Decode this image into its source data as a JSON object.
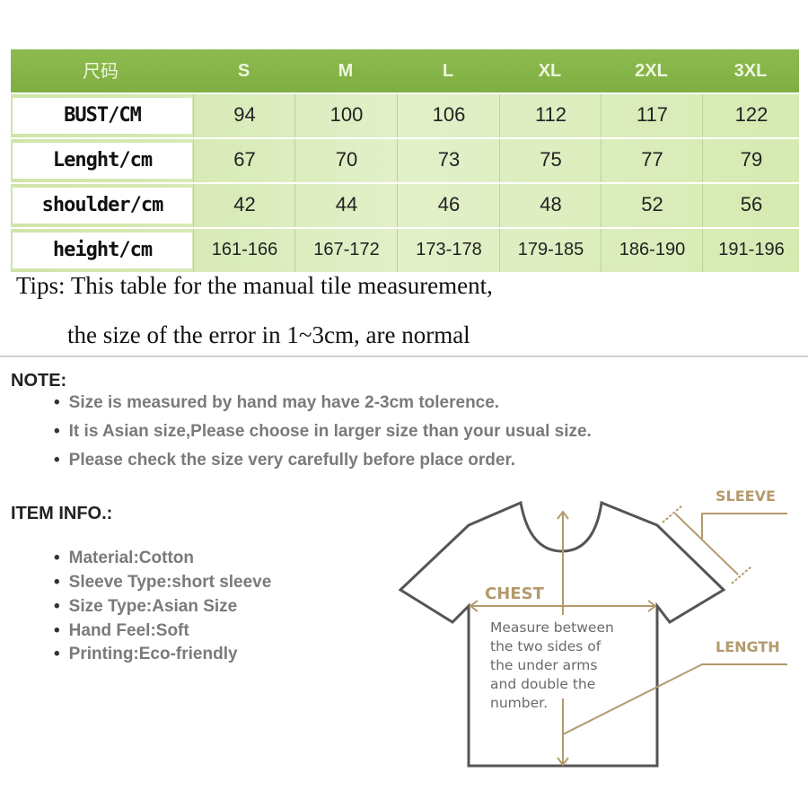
{
  "table": {
    "header": [
      "尺码",
      "S",
      "M",
      "L",
      "XL",
      "2XL",
      "3XL"
    ],
    "rows": [
      {
        "label": "BUST/CM",
        "values": [
          "94",
          "100",
          "106",
          "112",
          "117",
          "122"
        ]
      },
      {
        "label": "Lenght/cm",
        "values": [
          "67",
          "70",
          "73",
          "75",
          "77",
          "79"
        ]
      },
      {
        "label": "shoulder/cm",
        "values": [
          "42",
          "44",
          "46",
          "48",
          "52",
          "56"
        ]
      },
      {
        "label": "height/cm",
        "values": [
          "161-166",
          "167-172",
          "173-178",
          "179-185",
          "186-190",
          "191-196"
        ]
      }
    ]
  },
  "tips": {
    "line1": "Tips: This table for the manual tile measurement,",
    "line2": "the size of the error in 1~3cm, are normal"
  },
  "note": {
    "title": "NOTE:",
    "items": [
      "Size is measured by hand may have 2-3cm tolerence.",
      "It is Asian size,Please choose in larger size than your usual size.",
      "Please check the size very carefully before place order."
    ]
  },
  "item_info": {
    "title": "ITEM INFO.:",
    "items": [
      "Material:Cotton",
      "Sleeve Type:short sleeve",
      "Size Type:Asian Size",
      "Hand Feel:Soft",
      "Printing:Eco-friendly"
    ]
  },
  "diagram": {
    "sleeve": "SLEEVE",
    "chest": "CHEST",
    "length": "LENGTH",
    "measure_lines": [
      "Measure between",
      "the two sides of",
      "the under arms",
      "and double the",
      "number."
    ]
  },
  "colors": {
    "header_green": "#8dbb4f",
    "row_green": "#d6eab2",
    "measure_tan": "#b39a6c"
  }
}
